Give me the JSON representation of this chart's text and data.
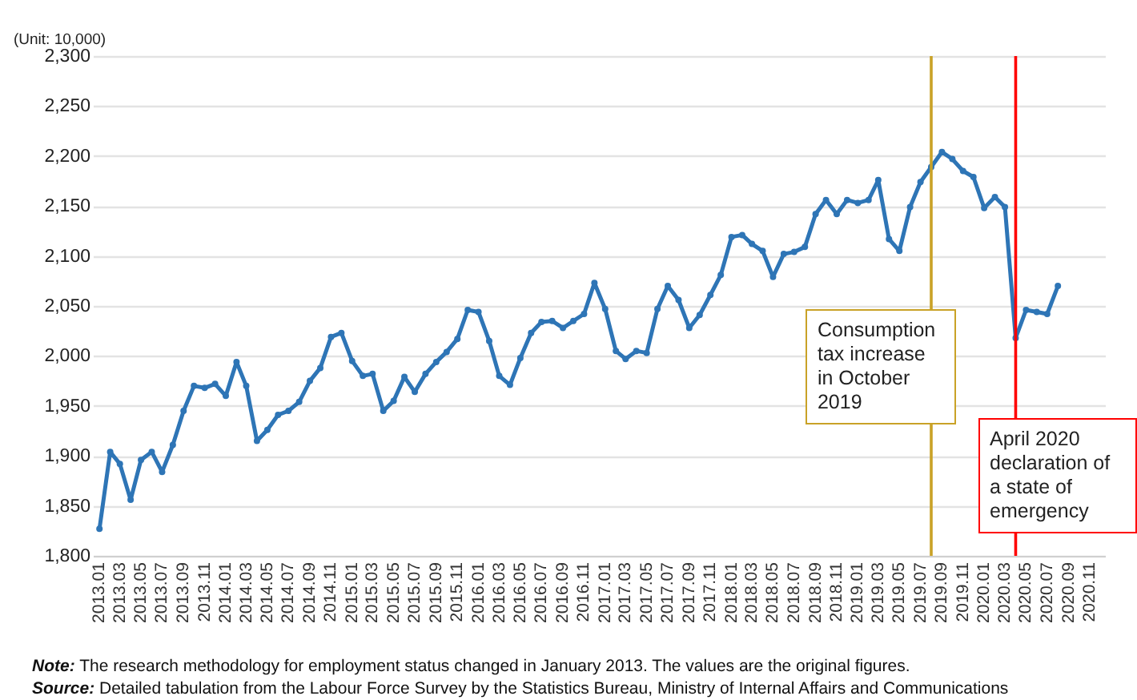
{
  "chart_data": {
    "type": "line",
    "ylabel": "(Unit: 10,000)",
    "x": [
      "2013-01",
      "2013-02",
      "2013-03",
      "2013-04",
      "2013-05",
      "2013-06",
      "2013-07",
      "2013-08",
      "2013-09",
      "2013-10",
      "2013-11",
      "2013-12",
      "2014-01",
      "2014-02",
      "2014-03",
      "2014-04",
      "2014-05",
      "2014-06",
      "2014-07",
      "2014-08",
      "2014-09",
      "2014-10",
      "2014-11",
      "2014-12",
      "2015-01",
      "2015-02",
      "2015-03",
      "2015-04",
      "2015-05",
      "2015-06",
      "2015-07",
      "2015-08",
      "2015-09",
      "2015-10",
      "2015-11",
      "2015-12",
      "2016-01",
      "2016-02",
      "2016-03",
      "2016-04",
      "2016-05",
      "2016-06",
      "2016-07",
      "2016-08",
      "2016-09",
      "2016-10",
      "2016-11",
      "2016-12",
      "2017-01",
      "2017-02",
      "2017-03",
      "2017-04",
      "2017-05",
      "2017-06",
      "2017-07",
      "2017-08",
      "2017-09",
      "2017-10",
      "2017-11",
      "2017-12",
      "2018-01",
      "2018-02",
      "2018-03",
      "2018-04",
      "2018-05",
      "2018-06",
      "2018-07",
      "2018-08",
      "2018-09",
      "2018-10",
      "2018-11",
      "2018-12",
      "2019-01",
      "2019-02",
      "2019-03",
      "2019-04",
      "2019-05",
      "2019-06",
      "2019-07",
      "2019-08",
      "2019-09",
      "2019-10",
      "2019-11",
      "2019-12",
      "2020-01",
      "2020-02",
      "2020-03",
      "2020-04",
      "2020-05",
      "2020-06",
      "2020-07",
      "2020-08"
    ],
    "series": [
      {
        "color": "#2e75b6",
        "values": [
          1827,
          1904,
          1892,
          1856,
          1896,
          1904,
          1884,
          1911,
          1945,
          1970,
          1968,
          1972,
          1960,
          1994,
          1970,
          1915,
          1926,
          1941,
          1945,
          1954,
          1975,
          1988,
          2019,
          2023,
          1995,
          1980,
          1982,
          1945,
          1955,
          1979,
          1964,
          1982,
          1994,
          2004,
          2017,
          2046,
          2044,
          2015,
          1980,
          1971,
          1998,
          2023,
          2034,
          2035,
          2028,
          2035,
          2042,
          2073,
          2047,
          2005,
          1997,
          2005,
          2003,
          2047,
          2070,
          2056,
          2028,
          2041,
          2061,
          2081,
          2119,
          2121,
          2112,
          2105,
          2079,
          2102,
          2104,
          2109,
          2142,
          2156,
          2142,
          2156,
          2153,
          2156,
          2176,
          2117,
          2105,
          2149,
          2174,
          2189,
          2204,
          2197,
          2185,
          2179,
          2148,
          2159,
          2149,
          2018,
          2046,
          2044,
          2042,
          2070
        ]
      }
    ],
    "xlim": [
      "2012-12-13",
      "2020-12-15"
    ],
    "xticks": [
      {
        "value": "2013-01",
        "label": "2013.01"
      },
      {
        "value": "2013-03",
        "label": "2013.03"
      },
      {
        "value": "2013-05",
        "label": "2013.05"
      },
      {
        "value": "2013-07",
        "label": "2013.07"
      },
      {
        "value": "2013-09",
        "label": "2013.09"
      },
      {
        "value": "2013-11",
        "label": "2013.11"
      },
      {
        "value": "2014-01",
        "label": "2014.01"
      },
      {
        "value": "2014-03",
        "label": "2014.03"
      },
      {
        "value": "2014-05",
        "label": "2014.05"
      },
      {
        "value": "2014-07",
        "label": "2014.07"
      },
      {
        "value": "2014-09",
        "label": "2014.09"
      },
      {
        "value": "2014-11",
        "label": "2014.11"
      },
      {
        "value": "2015-01",
        "label": "2015.01"
      },
      {
        "value": "2015-03",
        "label": "2015.03"
      },
      {
        "value": "2015-05",
        "label": "2015.05"
      },
      {
        "value": "2015-07",
        "label": "2015.07"
      },
      {
        "value": "2015-09",
        "label": "2015.09"
      },
      {
        "value": "2015-11",
        "label": "2015.11"
      },
      {
        "value": "2016-01",
        "label": "2016.01"
      },
      {
        "value": "2016-03",
        "label": "2016.03"
      },
      {
        "value": "2016-05",
        "label": "2016.05"
      },
      {
        "value": "2016-07",
        "label": "2016.07"
      },
      {
        "value": "2016-09",
        "label": "2016.09"
      },
      {
        "value": "2016-11",
        "label": "2016.11"
      },
      {
        "value": "2017-01",
        "label": "2017.01"
      },
      {
        "value": "2017-03",
        "label": "2017.03"
      },
      {
        "value": "2017-05",
        "label": "2017.05"
      },
      {
        "value": "2017-07",
        "label": "2017.07"
      },
      {
        "value": "2017-09",
        "label": "2017.09"
      },
      {
        "value": "2017-11",
        "label": "2017.11"
      },
      {
        "value": "2018-01",
        "label": "2018.01"
      },
      {
        "value": "2018-03",
        "label": "2018.03"
      },
      {
        "value": "2018-05",
        "label": "2018.05"
      },
      {
        "value": "2018-07",
        "label": "2018.07"
      },
      {
        "value": "2018-09",
        "label": "2018.09"
      },
      {
        "value": "2018-11",
        "label": "2018.11"
      },
      {
        "value": "2019-01",
        "label": "2019.01"
      },
      {
        "value": "2019-03",
        "label": "2019.03"
      },
      {
        "value": "2019-05",
        "label": "2019.05"
      },
      {
        "value": "2019-07",
        "label": "2019.07"
      },
      {
        "value": "2019-09",
        "label": "2019.09"
      },
      {
        "value": "2019-11",
        "label": "2019.11"
      },
      {
        "value": "2020-01",
        "label": "2020.01"
      },
      {
        "value": "2020-03",
        "label": "2020.03"
      },
      {
        "value": "2020-05",
        "label": "2020.05"
      },
      {
        "value": "2020-07",
        "label": "2020.07"
      },
      {
        "value": "2020-09",
        "label": "2020.09"
      },
      {
        "value": "2020-11",
        "label": "2020.11"
      }
    ],
    "ylim": [
      1800,
      2300
    ],
    "yticks": [
      {
        "value": 1800,
        "label": "1,800"
      },
      {
        "value": 1850,
        "label": "1,850"
      },
      {
        "value": 1900,
        "label": "1,900"
      },
      {
        "value": 1950,
        "label": "1,950"
      },
      {
        "value": 2000,
        "label": "2,000"
      },
      {
        "value": 2050,
        "label": "2,050"
      },
      {
        "value": 2100,
        "label": "2,100"
      },
      {
        "value": 2150,
        "label": "2,150"
      },
      {
        "value": 2200,
        "label": "2,200"
      },
      {
        "value": 2250,
        "label": "2,250"
      },
      {
        "value": 2300,
        "label": "2,300"
      }
    ],
    "grid": "y",
    "marker": "circle",
    "line_style": "solid",
    "ref_lines": [
      {
        "axis": "x",
        "value": "2019-08",
        "label": "Consumption tax increase in October 2019",
        "color": "#c9a227"
      },
      {
        "axis": "x",
        "value": "2020-04",
        "label": "April 2020 declaration of a state of emergency",
        "color": "#ff0000"
      }
    ],
    "annotations": [
      "Note: The research methodology for employment status changed in January 2013. The values are the original figures.",
      "Source: Detailed tabulation from the Labour Force Survey by the Statistics Bureau, Ministry of Internal Affairs and Communications"
    ]
  }
}
